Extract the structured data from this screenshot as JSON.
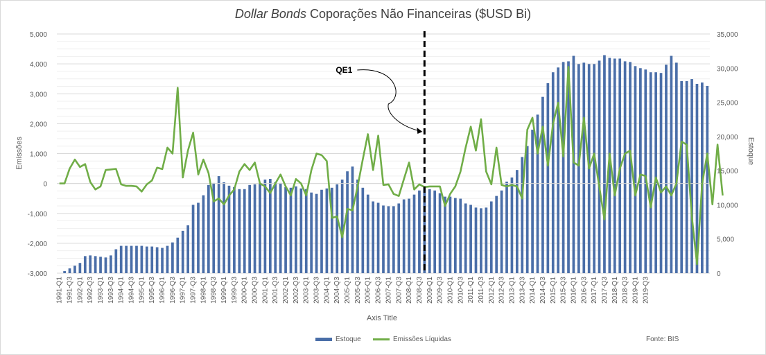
{
  "chart_data": {
    "type": "bar+line",
    "title_italic": "Dollar Bonds",
    "title_rest": " Coporações Não Financeiras ($USD Bi)",
    "xlabel": "Axis Title",
    "ylabel_left": "Emissões",
    "ylabel_right": "Estoque",
    "ylim_left": [
      -3000,
      5000
    ],
    "ylim_right": [
      0,
      35000
    ],
    "yticks_left": [
      "5,000",
      "4,000",
      "3,000",
      "2,000",
      "1,000",
      "0",
      "-1,000",
      "-2,000",
      "-3,000"
    ],
    "yticks_right": [
      "35,000",
      "30,000",
      "25,000",
      "20,000",
      "15,000",
      "10,000",
      "5,000",
      "0"
    ],
    "quarter_labels": [
      "1991-Q1",
      "1991-Q3",
      "1992-Q1",
      "1992-Q3",
      "1993-Q1",
      "1993-Q3",
      "1994-Q1",
      "1994-Q3",
      "1995-Q1",
      "1995-Q3",
      "1996-Q1",
      "1996-Q3",
      "1997-Q1",
      "1997-Q3",
      "1998-Q1",
      "1998-Q3",
      "1999-Q1",
      "1999-Q3",
      "2000-Q1",
      "2000-Q3",
      "2001-Q1",
      "2001-Q3",
      "2002-Q1",
      "2002-Q3",
      "2003-Q1",
      "2003-Q3",
      "2004-Q1",
      "2004-Q3",
      "2005-Q1",
      "2005-Q3",
      "2006-Q1",
      "2006-Q3",
      "2007-Q1",
      "2007-Q3",
      "2008-Q1",
      "2008-Q3",
      "2009-Q1",
      "2009-Q3",
      "2010-Q1",
      "2010-Q3",
      "2011-Q1",
      "2011-Q3",
      "2012-Q1",
      "2012-Q3",
      "2013-Q1",
      "2013-Q3",
      "2014-Q1",
      "2014-Q3",
      "2015-Q1",
      "2015-Q3",
      "2016-Q1",
      "2016-Q3",
      "2017-Q1",
      "2017-Q3",
      "2018-Q1",
      "2018-Q3",
      "2019-Q1",
      "2019-Q3"
    ],
    "series": [
      {
        "name": "Estoque",
        "type": "bar",
        "axis": "right",
        "color": "#4a6ea8",
        "values": [
          0,
          300,
          700,
          1100,
          1500,
          2500,
          2600,
          2500,
          2400,
          2300,
          2600,
          3500,
          4000,
          4000,
          4000,
          4000,
          4000,
          3900,
          3900,
          3800,
          3700,
          4000,
          4500,
          5200,
          6200,
          7000,
          10000,
          10300,
          11400,
          12900,
          13200,
          14200,
          13300,
          12800,
          12600,
          12300,
          12300,
          12900,
          13000,
          13200,
          13700,
          13800,
          13300,
          13200,
          12600,
          12500,
          12700,
          12400,
          12300,
          11800,
          11600,
          12200,
          12400,
          12500,
          13000,
          13700,
          14900,
          15600,
          13700,
          12500,
          11500,
          10500,
          10300,
          9900,
          9800,
          9800,
          10200,
          10800,
          10900,
          11500,
          12100,
          12700,
          12300,
          12100,
          11700,
          11200,
          11200,
          11000,
          10900,
          10200,
          10000,
          9600,
          9500,
          9600,
          10500,
          11300,
          12100,
          13400,
          14000,
          15100,
          17000,
          18600,
          21000,
          23200,
          25800,
          27800,
          29400,
          30100,
          30900,
          31000,
          31800,
          30600,
          30800,
          30600,
          30600,
          31100,
          31900,
          31500,
          31400,
          31400,
          31000,
          30900,
          30300,
          30000,
          29800,
          29400,
          29400,
          29300,
          30500,
          31800,
          30800,
          28100,
          28100,
          28400,
          27700,
          27900,
          27400
        ]
      },
      {
        "name": "Emissões Líquidas",
        "type": "line",
        "axis": "left",
        "color": "#70ad47",
        "values": [
          0,
          0,
          500,
          800,
          550,
          650,
          50,
          -200,
          -100,
          450,
          470,
          490,
          -30,
          -80,
          -80,
          -100,
          -270,
          -30,
          100,
          530,
          480,
          1200,
          1000,
          3200,
          200,
          1100,
          1700,
          300,
          800,
          350,
          -600,
          -500,
          -700,
          -400,
          -200,
          400,
          650,
          450,
          700,
          0,
          -100,
          -320,
          0,
          300,
          -100,
          -400,
          150,
          0,
          -400,
          450,
          1000,
          950,
          750,
          -1150,
          -1100,
          -1800,
          -850,
          -900,
          -100,
          800,
          1650,
          450,
          1600,
          -50,
          -30,
          -350,
          -420,
          150,
          700,
          -200,
          -30,
          -120,
          -100,
          -100,
          -100,
          -750,
          -350,
          -100,
          400,
          1200,
          1900,
          1100,
          2150,
          400,
          -30,
          1200,
          -50,
          -100,
          -50,
          -100,
          -500,
          1800,
          2200,
          1000,
          1900,
          600,
          2000,
          2700,
          900,
          3900,
          700,
          600,
          2200,
          500,
          1000,
          -100,
          -1200,
          1000,
          -400,
          500,
          1000,
          1100,
          -400,
          300,
          250,
          -800,
          200,
          -300,
          -100,
          -400,
          0,
          1400,
          1300,
          -1100,
          -2700,
          0,
          1000,
          -700,
          1300,
          -400
        ]
      }
    ],
    "annotations": [
      {
        "text": "QE1",
        "type": "vertical-dashed-line",
        "at": "2008-Q4"
      }
    ],
    "legend_placement": "bottom-center",
    "grid": "horizontal"
  },
  "legend": {
    "items": [
      "Estoque",
      "Emissões Líquidas"
    ]
  },
  "source": "Fonte: BIS"
}
